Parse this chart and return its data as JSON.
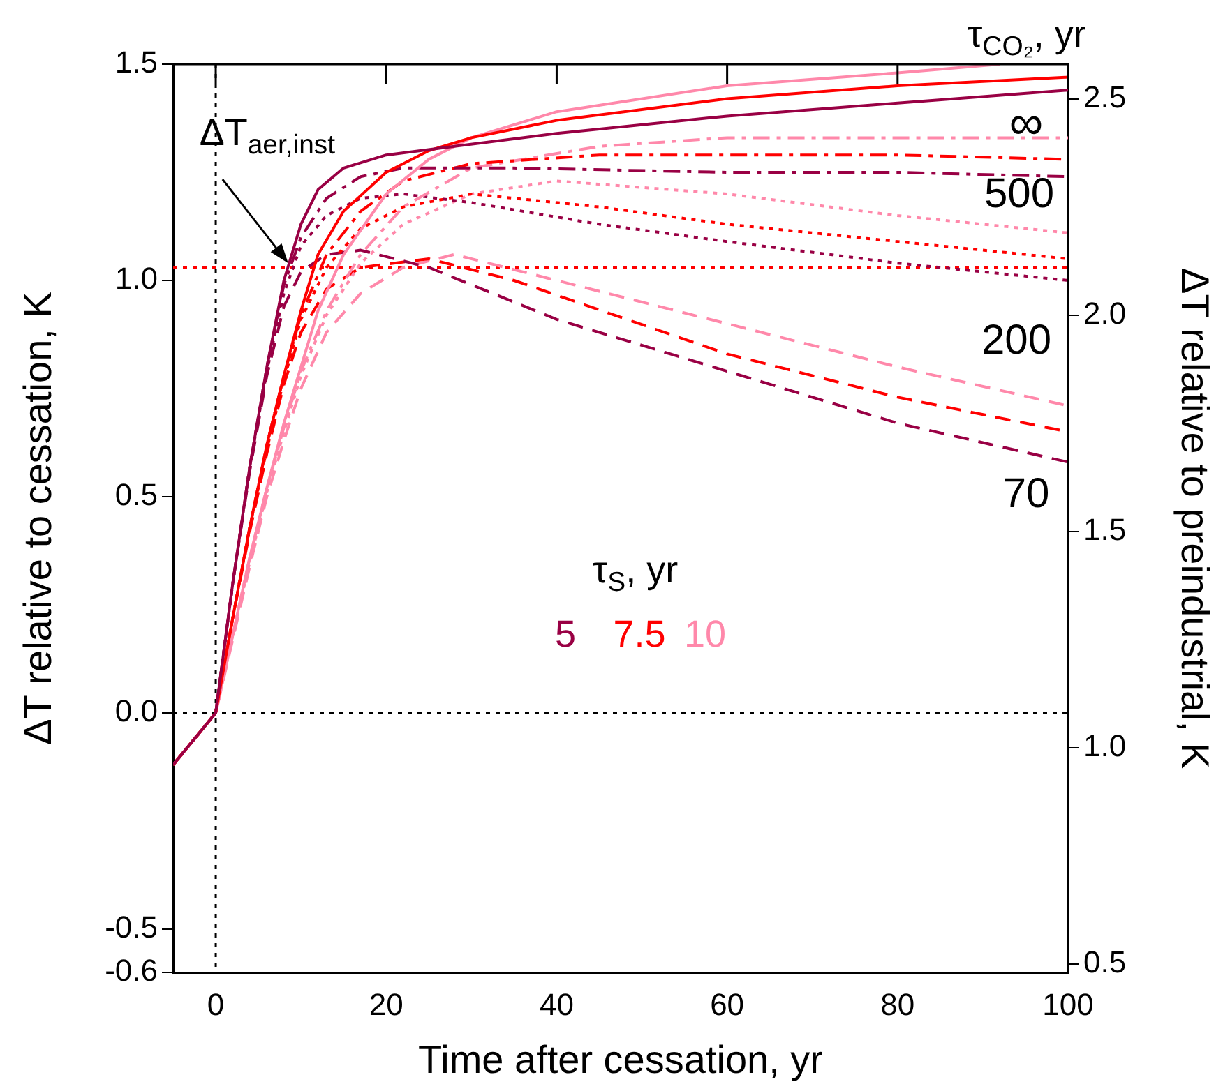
{
  "chart_data": {
    "type": "line",
    "xlabel": "Time after cessation, yr",
    "ylabel": "ΔT relative to cessation, K",
    "y2label": "ΔT relative to preindustrial, K",
    "xlim": [
      -5,
      100
    ],
    "xticks": [
      0,
      20,
      40,
      60,
      80,
      100
    ],
    "ylim": [
      -0.6,
      1.5
    ],
    "yticks": [
      {
        "value": -0.6,
        "label": "-0.6"
      },
      {
        "value": -0.5,
        "label": "-0.5"
      },
      {
        "value": 0,
        "label": "0.0"
      },
      {
        "value": 0.5,
        "label": "0.5"
      },
      {
        "value": 1,
        "label": "1.0"
      },
      {
        "value": 1.5,
        "label": "1.5"
      }
    ],
    "y2lim": [
      0.48,
      2.58
    ],
    "y2ticks": [
      {
        "value": 0.5,
        "label": "0.5"
      },
      {
        "value": 1,
        "label": "1.0"
      },
      {
        "value": 1.5,
        "label": "1.5"
      },
      {
        "value": 2,
        "label": "2.0"
      },
      {
        "value": 2.5,
        "label": "2.5"
      }
    ],
    "grid": false,
    "legend": false,
    "series": [
      {
        "color": "#990044",
        "line_style": "solid",
        "x": [
          -5,
          -2.5,
          0,
          2,
          4,
          6,
          8,
          10,
          12,
          15,
          20,
          28,
          40,
          60,
          80,
          100
        ],
        "values": [
          -0.12,
          -0.06,
          0,
          0.3,
          0.57,
          0.8,
          1.0,
          1.13,
          1.21,
          1.26,
          1.29,
          1.31,
          1.34,
          1.38,
          1.41,
          1.44
        ]
      },
      {
        "color": "#ff0000",
        "line_style": "solid",
        "x": [
          -5,
          -2.5,
          0,
          2,
          4,
          6,
          8,
          10,
          12,
          15,
          20,
          25,
          30,
          40,
          60,
          80,
          100
        ],
        "values": [
          -0.12,
          -0.06,
          0,
          0.22,
          0.43,
          0.62,
          0.78,
          0.93,
          1.06,
          1.16,
          1.25,
          1.3,
          1.33,
          1.37,
          1.42,
          1.45,
          1.47
        ]
      },
      {
        "color": "#ff88aa",
        "line_style": "solid",
        "x": [
          -5,
          -2.5,
          0,
          2,
          4,
          6,
          8,
          10,
          12,
          15,
          20,
          25,
          30,
          40,
          60,
          80,
          92
        ],
        "values": [
          -0.12,
          -0.06,
          0,
          0.18,
          0.36,
          0.52,
          0.67,
          0.8,
          0.93,
          1.06,
          1.2,
          1.28,
          1.33,
          1.39,
          1.45,
          1.48,
          1.5
        ]
      },
      {
        "color": "#990044",
        "line_style": "dashdot",
        "x": [
          -5,
          -2.5,
          0,
          2,
          4,
          6,
          8,
          10,
          13,
          17,
          22,
          35,
          60,
          80,
          100
        ],
        "values": [
          -0.12,
          -0.06,
          0,
          0.3,
          0.57,
          0.8,
          0.99,
          1.1,
          1.19,
          1.24,
          1.26,
          1.26,
          1.25,
          1.25,
          1.24
        ]
      },
      {
        "color": "#ff0000",
        "line_style": "dashdot",
        "x": [
          -5,
          -2.5,
          0,
          2,
          4,
          6,
          8,
          10,
          13,
          17,
          22,
          30,
          45,
          60,
          80,
          100
        ],
        "values": [
          -0.12,
          -0.06,
          0,
          0.22,
          0.43,
          0.62,
          0.78,
          0.92,
          1.06,
          1.16,
          1.23,
          1.27,
          1.29,
          1.29,
          1.29,
          1.28
        ]
      },
      {
        "color": "#ff88aa",
        "line_style": "dashdot",
        "x": [
          -5,
          -2.5,
          0,
          2,
          4,
          6,
          8,
          10,
          13,
          17,
          22,
          30,
          45,
          60,
          80,
          100
        ],
        "values": [
          -0.12,
          -0.06,
          0,
          0.18,
          0.36,
          0.52,
          0.66,
          0.79,
          0.93,
          1.06,
          1.17,
          1.26,
          1.31,
          1.33,
          1.33,
          1.33
        ]
      },
      {
        "color": "#990044",
        "line_style": "dotted",
        "x": [
          -5,
          -2.5,
          0,
          2,
          4,
          6,
          8,
          10,
          13,
          17,
          22,
          30,
          45,
          60,
          80,
          100
        ],
        "values": [
          -0.12,
          -0.06,
          0,
          0.3,
          0.57,
          0.79,
          0.97,
          1.08,
          1.15,
          1.19,
          1.2,
          1.18,
          1.13,
          1.09,
          1.04,
          1.0
        ]
      },
      {
        "color": "#ff0000",
        "line_style": "dotted",
        "x": [
          -5,
          -2.5,
          0,
          2,
          4,
          6,
          8,
          10,
          13,
          17,
          22,
          30,
          45,
          60,
          80,
          100
        ],
        "values": [
          -0.12,
          -0.06,
          0,
          0.22,
          0.43,
          0.61,
          0.77,
          0.91,
          1.03,
          1.12,
          1.17,
          1.2,
          1.17,
          1.13,
          1.09,
          1.05
        ]
      },
      {
        "color": "#ff88aa",
        "line_style": "dotted",
        "x": [
          -5,
          -2.5,
          0,
          2,
          4,
          6,
          8,
          10,
          13,
          17,
          22,
          30,
          40,
          60,
          80,
          100
        ],
        "values": [
          -0.12,
          -0.06,
          0,
          0.18,
          0.35,
          0.51,
          0.65,
          0.78,
          0.92,
          1.04,
          1.13,
          1.2,
          1.23,
          1.2,
          1.15,
          1.11
        ]
      },
      {
        "color": "#990044",
        "line_style": "dashed",
        "x": [
          -5,
          -2.5,
          0,
          2,
          4,
          6,
          8,
          10,
          13,
          17,
          25,
          40,
          60,
          80,
          100
        ],
        "values": [
          -0.12,
          -0.06,
          0,
          0.3,
          0.56,
          0.78,
          0.94,
          1.02,
          1.06,
          1.07,
          1.03,
          0.91,
          0.79,
          0.67,
          0.58
        ]
      },
      {
        "color": "#ff0000",
        "line_style": "dashed",
        "x": [
          -5,
          -2.5,
          0,
          2,
          4,
          6,
          8,
          10,
          13,
          17,
          25,
          35,
          60,
          80,
          100
        ],
        "values": [
          -0.12,
          -0.06,
          0,
          0.22,
          0.42,
          0.6,
          0.76,
          0.88,
          0.98,
          1.03,
          1.05,
          1.0,
          0.83,
          0.73,
          0.65
        ]
      },
      {
        "color": "#ff88aa",
        "line_style": "dashed",
        "x": [
          -5,
          -2.5,
          0,
          2,
          4,
          6,
          8,
          10,
          13,
          17,
          22,
          28,
          40,
          60,
          80,
          100
        ],
        "values": [
          -0.12,
          -0.06,
          0,
          0.17,
          0.34,
          0.5,
          0.63,
          0.75,
          0.88,
          0.97,
          1.03,
          1.06,
          1.0,
          0.9,
          0.8,
          0.71
        ]
      }
    ],
    "ref_lines": [
      {
        "axis": "x",
        "value": 0,
        "color": "#000000",
        "line_style": "dotted"
      },
      {
        "axis": "y",
        "value": 0,
        "color": "#000000",
        "line_style": "dotted"
      },
      {
        "axis": "y",
        "value": 1.03,
        "color": "#ff0000",
        "line_style": "dotted"
      }
    ],
    "annotations": [
      {
        "text": "ΔT$_{aer,inst}$",
        "x": 8.5,
        "y": 1.04
      },
      "τ$_{CO₂}$, yr",
      "∞",
      "500",
      "200",
      "70",
      "τ$_{S}$, yr",
      "5",
      "7.5",
      "10"
    ]
  }
}
